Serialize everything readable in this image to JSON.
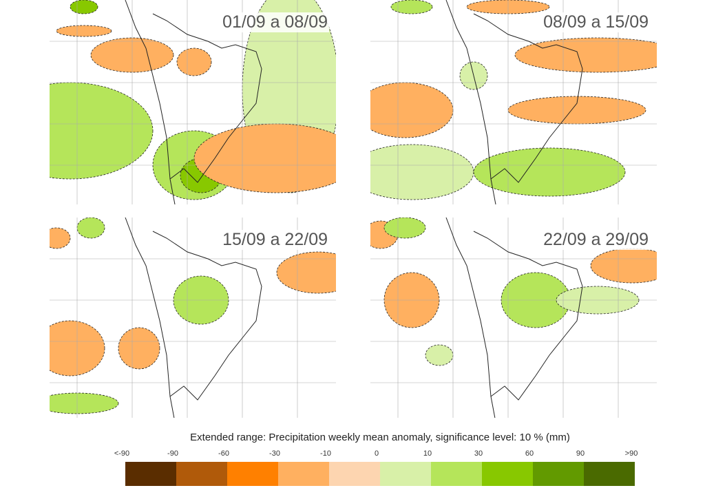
{
  "panels": [
    {
      "label": "01/09 a 08/09"
    },
    {
      "label": "08/09 a 15/09"
    },
    {
      "label": "15/09 a 22/09"
    },
    {
      "label": "22/09 a 29/09"
    }
  ],
  "legend": {
    "title": "Extended range: Precipitation weekly mean anomaly, significance level: 10 % (mm)",
    "ticks": [
      "<-90",
      "-90",
      "-60",
      "-30",
      "-10",
      "0",
      "10",
      "30",
      "60",
      "90",
      ">90"
    ],
    "colors": [
      "#5a2d00",
      "#b05a0a",
      "#ff8000",
      "#ffb060",
      "#fdd5b0",
      "#d8f0a8",
      "#b5e55a",
      "#88c800",
      "#629a00",
      "#4a6a00"
    ]
  }
}
